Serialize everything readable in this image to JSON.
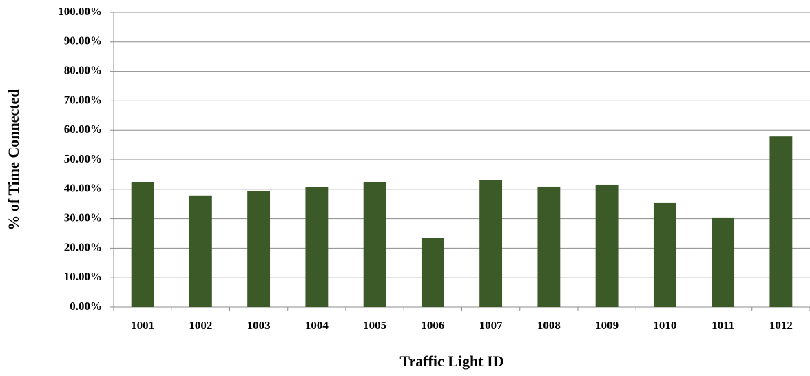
{
  "chart_data": {
    "type": "bar",
    "x_label": "Traffic Light ID",
    "y_label": "% of Time Connected",
    "categories": [
      "1001",
      "1002",
      "1003",
      "1004",
      "1005",
      "1006",
      "1007",
      "1008",
      "1009",
      "1010",
      "1011",
      "1012"
    ],
    "values": [
      42.5,
      37.9,
      39.3,
      40.7,
      42.3,
      23.6,
      43.0,
      40.9,
      41.6,
      35.3,
      30.4,
      57.9
    ],
    "color": "#3b5a27",
    "ylim": [
      0,
      100
    ],
    "yticks": [
      {
        "value": 0,
        "label": "0.00%"
      },
      {
        "value": 10,
        "label": "10.00%"
      },
      {
        "value": 20,
        "label": "20.00%"
      },
      {
        "value": 30,
        "label": "30.00%"
      },
      {
        "value": 40,
        "label": "40.00%"
      },
      {
        "value": 50,
        "label": "50.00%"
      },
      {
        "value": 60,
        "label": "60.00%"
      },
      {
        "value": 70,
        "label": "70.00%"
      },
      {
        "value": 80,
        "label": "80.00%"
      },
      {
        "value": 90,
        "label": "90.00%"
      },
      {
        "value": 100,
        "label": "100.00%"
      }
    ],
    "grid": true
  }
}
